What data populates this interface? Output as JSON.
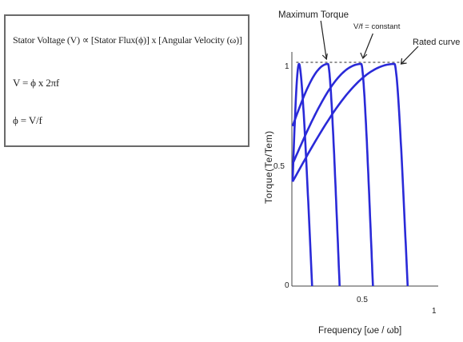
{
  "formula_box": {
    "line1": "Stator Voltage (V) ∝ [Stator Flux(ϕ)] x [Angular Velocity (ω)]",
    "line2": "V = ϕ x 2πf",
    "line3": "ϕ = V/f"
  },
  "chart": {
    "annotation_max_torque": "Maximum Torque",
    "annotation_vf_constant": "V/f = constant",
    "annotation_rated_curve": "Rated curve",
    "ylabel": "Torque(Te/Tem)",
    "xlabel": "Frequency [ωe / ωb]",
    "y_ticks": [
      "0",
      "0.5",
      "1"
    ],
    "x_ticks": [
      "0.5",
      "1"
    ],
    "line_color": "#2a2ad8",
    "dash_color": "#555555"
  },
  "chart_data": {
    "type": "line",
    "title": "",
    "xlabel": "Frequency [ωe / ωb]",
    "ylabel": "Torque(Te/Tem)",
    "xlim": [
      0,
      1
    ],
    "ylim": [
      0,
      1
    ],
    "x_ticks": [
      0.5,
      1
    ],
    "y_ticks": [
      0,
      0.5,
      1
    ],
    "max_torque_level": 1.0,
    "series": [
      {
        "start_torque": 0.47,
        "peak_x": 0.05,
        "zero_x": 0.14
      },
      {
        "start_torque": 0.72,
        "peak_x": 0.25,
        "zero_x": 0.33
      },
      {
        "start_torque": 0.55,
        "peak_x": 0.48,
        "zero_x": 0.56
      },
      {
        "start_torque": 0.47,
        "peak_x": 0.71,
        "zero_x": 0.8
      }
    ]
  }
}
